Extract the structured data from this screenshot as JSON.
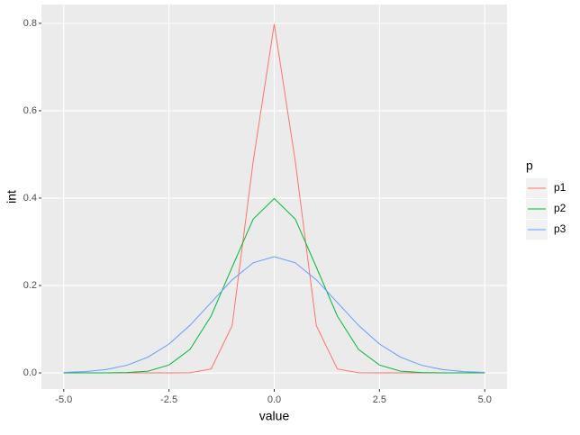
{
  "chart_data": {
    "type": "line",
    "x_label": "value",
    "y_label": "int",
    "legend_title": "p",
    "x": [
      -5,
      -4.5,
      -4,
      -3.5,
      -3,
      -2.5,
      -2,
      -1.5,
      -1,
      -0.5,
      0,
      0.5,
      1,
      1.5,
      2,
      2.5,
      3,
      3.5,
      4,
      4.5,
      5
    ],
    "series": [
      {
        "name": "p1",
        "color": "#f8766d",
        "values": [
          0,
          0,
          0,
          0,
          0,
          0,
          0.0003,
          0.009,
          0.108,
          0.484,
          0.798,
          0.484,
          0.108,
          0.009,
          0.0003,
          0,
          0,
          0,
          0,
          0,
          0
        ]
      },
      {
        "name": "p2",
        "color": "#00ba38",
        "values": [
          0,
          0,
          0.0001,
          0.0009,
          0.004,
          0.018,
          0.054,
          0.13,
          0.242,
          0.352,
          0.399,
          0.352,
          0.242,
          0.13,
          0.054,
          0.018,
          0.004,
          0.0009,
          0.0001,
          0,
          0
        ]
      },
      {
        "name": "p3",
        "color": "#619cff",
        "values": [
          0.001,
          0.003,
          0.0076,
          0.0175,
          0.036,
          0.066,
          0.109,
          0.161,
          0.213,
          0.252,
          0.266,
          0.252,
          0.213,
          0.161,
          0.109,
          0.066,
          0.036,
          0.0175,
          0.0076,
          0.003,
          0.001
        ]
      }
    ],
    "xlim": [
      -5.53,
      5.53
    ],
    "ylim": [
      -0.037,
      0.843
    ],
    "xticks": [
      {
        "value": -5,
        "label": "-5.0"
      },
      {
        "value": -2.5,
        "label": "-2.5"
      },
      {
        "value": 0,
        "label": "0.0"
      },
      {
        "value": 2.5,
        "label": "2.5"
      },
      {
        "value": 5,
        "label": "5.0"
      }
    ],
    "yticks": [
      {
        "value": 0,
        "label": "0.0"
      },
      {
        "value": 0.2,
        "label": "0.2"
      },
      {
        "value": 0.4,
        "label": "0.4"
      },
      {
        "value": 0.6,
        "label": "0.6"
      },
      {
        "value": 0.8,
        "label": "0.8"
      }
    ],
    "grid": true
  }
}
